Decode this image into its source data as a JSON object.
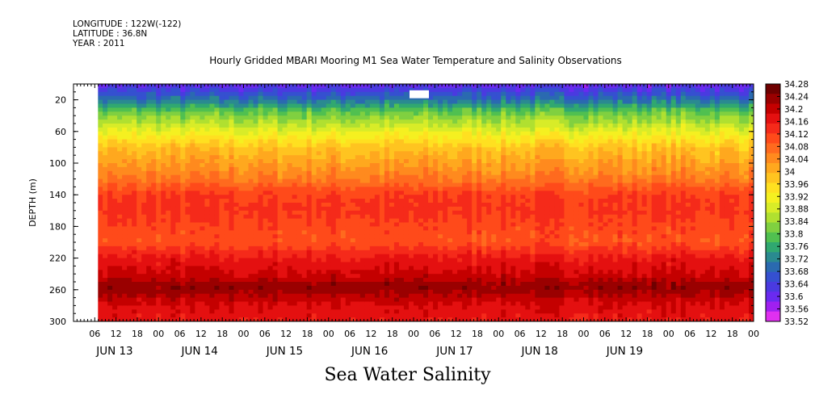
{
  "header": {
    "longitude": "LONGITUDE : 122W(-122)",
    "latitude": "LATITUDE : 36.8N",
    "year": "YEAR : 2011"
  },
  "chart_data": {
    "type": "heatmap",
    "title": "Hourly Gridded MBARI Mooring M1 Sea Water Temperature and Salinity Observations",
    "xlabel": "",
    "ylabel": "DEPTH (m)",
    "caption": "Sea Water Salinity",
    "y_ticks": [
      20,
      60,
      100,
      140,
      180,
      220,
      260,
      300
    ],
    "ylim": [
      300,
      0
    ],
    "x_hour_ticks": [
      "06",
      "12",
      "18",
      "00",
      "06",
      "12",
      "18",
      "00",
      "06",
      "12",
      "18",
      "00",
      "06",
      "12",
      "18",
      "00",
      "06",
      "12",
      "18",
      "00",
      "06",
      "12",
      "18",
      "00",
      "06",
      "12",
      "18",
      "00",
      "06",
      "12",
      "18",
      "00"
    ],
    "x_day_labels": [
      "JUN 13",
      "JUN 14",
      "JUN 15",
      "JUN 16",
      "JUN 17",
      "JUN 18",
      "JUN 19"
    ],
    "colorbar_labels": [
      "34.28",
      "34.24",
      "34.2",
      "34.16",
      "34.12",
      "34.08",
      "34.04",
      "34",
      "33.96",
      "33.92",
      "33.88",
      "33.84",
      "33.8",
      "33.76",
      "33.72",
      "33.68",
      "33.64",
      "33.6",
      "33.56",
      "33.52"
    ],
    "colormap": [
      "#6f0000",
      "#9a0000",
      "#c40000",
      "#e41010",
      "#f52a1a",
      "#ff4a1a",
      "#ff6a1e",
      "#ff8a1e",
      "#ffa81e",
      "#ffc420",
      "#ffe020",
      "#f5f020",
      "#d8ec28",
      "#b0e030",
      "#80d040",
      "#50c050",
      "#30a870",
      "#2a8a90",
      "#2a6ab0",
      "#3550d0",
      "#4a3ae0",
      "#6a2af0",
      "#a020f0",
      "#e030f0"
    ],
    "depth_profile": [
      {
        "depth": 8,
        "value": 33.64
      },
      {
        "depth": 20,
        "value": 33.7
      },
      {
        "depth": 35,
        "value": 33.8
      },
      {
        "depth": 50,
        "value": 33.86
      },
      {
        "depth": 65,
        "value": 33.92
      },
      {
        "depth": 80,
        "value": 33.98
      },
      {
        "depth": 100,
        "value": 34.02
      },
      {
        "depth": 120,
        "value": 34.06
      },
      {
        "depth": 140,
        "value": 34.12
      },
      {
        "depth": 160,
        "value": 34.13
      },
      {
        "depth": 180,
        "value": 34.11
      },
      {
        "depth": 200,
        "value": 34.1
      },
      {
        "depth": 220,
        "value": 34.16
      },
      {
        "depth": 245,
        "value": 34.2
      },
      {
        "depth": 255,
        "value": 34.24
      },
      {
        "depth": 265,
        "value": 34.22
      },
      {
        "depth": 280,
        "value": 34.18
      },
      {
        "depth": 300,
        "value": 34.16
      }
    ]
  }
}
